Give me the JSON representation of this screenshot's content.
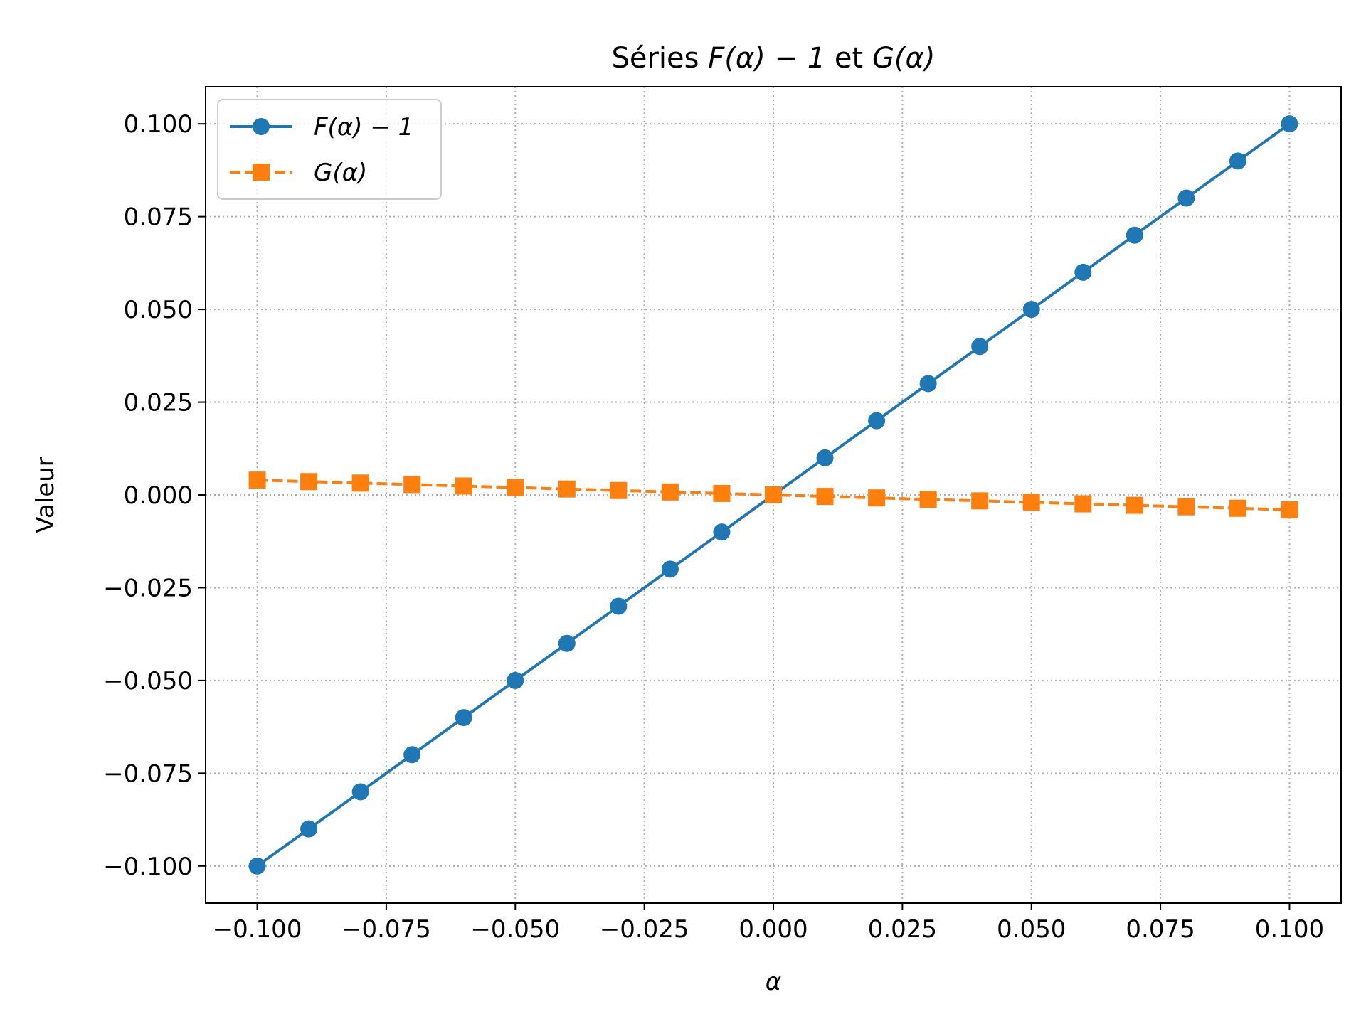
{
  "chart_data": {
    "type": "line",
    "title": {
      "prefix": "Séries ",
      "f_label": "F(α) − 1",
      "mid": " et ",
      "g_label": "G(α)"
    },
    "xlabel": "α",
    "ylabel": "Valeur",
    "xlim": [
      -0.11,
      0.11
    ],
    "ylim": [
      -0.11,
      0.11
    ],
    "x_ticks": [
      -0.1,
      -0.075,
      -0.05,
      -0.025,
      0.0,
      0.025,
      0.05,
      0.075,
      0.1
    ],
    "x_tick_labels": [
      "−0.100",
      "−0.075",
      "−0.050",
      "−0.025",
      "0.000",
      "0.025",
      "0.050",
      "0.075",
      "0.100"
    ],
    "y_ticks": [
      -0.1,
      -0.075,
      -0.05,
      -0.025,
      0.0,
      0.025,
      0.05,
      0.075,
      0.1
    ],
    "y_tick_labels": [
      "−0.100",
      "−0.075",
      "−0.050",
      "−0.025",
      "0.000",
      "0.025",
      "0.050",
      "0.075",
      "0.100"
    ],
    "grid": true,
    "legend_position": "top-left",
    "x": [
      -0.1,
      -0.09,
      -0.08,
      -0.07,
      -0.06,
      -0.05,
      -0.04,
      -0.03,
      -0.02,
      -0.01,
      0.0,
      0.01,
      0.02,
      0.03,
      0.04,
      0.05,
      0.06,
      0.07,
      0.08,
      0.09,
      0.1
    ],
    "series": [
      {
        "name": "F(α) − 1",
        "color": "#1f77b4",
        "line_style": "solid",
        "marker": "circle",
        "values": [
          -0.1,
          -0.09,
          -0.08,
          -0.07,
          -0.06,
          -0.05,
          -0.04,
          -0.03,
          -0.02,
          -0.01,
          0.0,
          0.01,
          0.02,
          0.03,
          0.04,
          0.05,
          0.06,
          0.07,
          0.08,
          0.09,
          0.1
        ]
      },
      {
        "name": "G(α)",
        "color": "#ff7f0e",
        "line_style": "dashed",
        "marker": "square",
        "values": [
          0.004,
          0.0036,
          0.0032,
          0.0028,
          0.0024,
          0.002,
          0.0016,
          0.0012,
          0.0008,
          0.0004,
          0.0,
          -0.0004,
          -0.0008,
          -0.0012,
          -0.0016,
          -0.002,
          -0.0024,
          -0.0028,
          -0.0032,
          -0.0036,
          -0.004
        ]
      }
    ]
  }
}
